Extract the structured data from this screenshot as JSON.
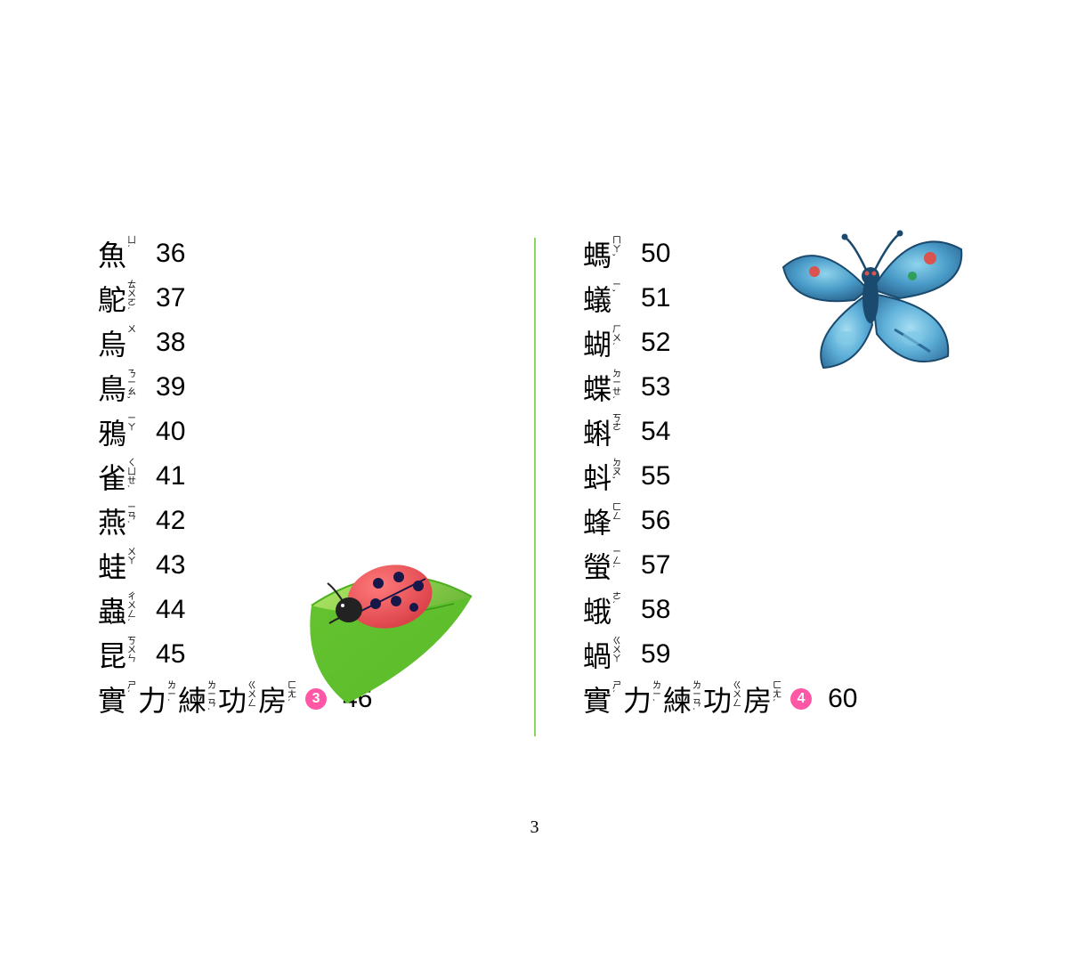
{
  "page_number": "3",
  "divider_color": "#86d75a",
  "bullet_color": "#ff57a6",
  "left_column": {
    "entries": [
      {
        "hanzi": "魚",
        "zhuyin": "ㄩˊ",
        "page": "36"
      },
      {
        "hanzi": "鴕",
        "zhuyin": "ㄊㄨㄛˊ",
        "page": "37"
      },
      {
        "hanzi": "烏",
        "zhuyin": "ㄨ",
        "page": "38"
      },
      {
        "hanzi": "鳥",
        "zhuyin": "ㄋㄧㄠˇ",
        "page": "39"
      },
      {
        "hanzi": "鴉",
        "zhuyin": "ㄧㄚ",
        "page": "40"
      },
      {
        "hanzi": "雀",
        "zhuyin": "ㄑㄩㄝˋ",
        "page": "41"
      },
      {
        "hanzi": "燕",
        "zhuyin": "ㄧㄢˋ",
        "page": "42"
      },
      {
        "hanzi": "蛙",
        "zhuyin": "ㄨㄚ",
        "page": "43"
      },
      {
        "hanzi": "蟲",
        "zhuyin": "ㄔㄨㄥˊ",
        "page": "44"
      },
      {
        "hanzi": "昆",
        "zhuyin": "ㄎㄨㄣ",
        "page": "45"
      }
    ],
    "practice": {
      "chars": [
        {
          "hanzi": "實",
          "zhuyin": "ㄕˊ"
        },
        {
          "hanzi": "力",
          "zhuyin": "ㄌㄧˋ"
        },
        {
          "hanzi": "練",
          "zhuyin": "ㄌㄧㄢˋ"
        },
        {
          "hanzi": "功",
          "zhuyin": "ㄍㄨㄥ"
        },
        {
          "hanzi": "房",
          "zhuyin": "ㄈㄤˊ"
        }
      ],
      "bullet": "3",
      "page": "46"
    }
  },
  "right_column": {
    "entries": [
      {
        "hanzi": "螞",
        "zhuyin": "ㄇㄚˇ",
        "page": "50"
      },
      {
        "hanzi": "蟻",
        "zhuyin": "ㄧˇ",
        "page": "51"
      },
      {
        "hanzi": "蝴",
        "zhuyin": "ㄏㄨˊ",
        "page": "52"
      },
      {
        "hanzi": "蝶",
        "zhuyin": "ㄉㄧㄝˊ",
        "page": "53"
      },
      {
        "hanzi": "蝌",
        "zhuyin": "ㄎㄜ",
        "page": "54"
      },
      {
        "hanzi": "蚪",
        "zhuyin": "ㄉㄡˇ",
        "page": "55"
      },
      {
        "hanzi": "蜂",
        "zhuyin": "ㄈㄥ",
        "page": "56"
      },
      {
        "hanzi": "螢",
        "zhuyin": "ㄧㄥˊ",
        "page": "57"
      },
      {
        "hanzi": "蛾",
        "zhuyin": "ㄜˊ",
        "page": "58"
      },
      {
        "hanzi": "蝸",
        "zhuyin": "ㄍㄨㄚ",
        "page": "59"
      }
    ],
    "practice": {
      "chars": [
        {
          "hanzi": "實",
          "zhuyin": "ㄕˊ"
        },
        {
          "hanzi": "力",
          "zhuyin": "ㄌㄧˋ"
        },
        {
          "hanzi": "練",
          "zhuyin": "ㄌㄧㄢˋ"
        },
        {
          "hanzi": "功",
          "zhuyin": "ㄍㄨㄥ"
        },
        {
          "hanzi": "房",
          "zhuyin": "ㄈㄤˊ"
        }
      ],
      "bullet": "4",
      "page": "60"
    }
  },
  "illustrations": {
    "ladybug": {
      "leaf_color_top": "#8fd94a",
      "leaf_color_bottom": "#4caf1f",
      "body_color": "#e94a4f",
      "head_color": "#2a2a2a",
      "spot_color": "#17174a"
    },
    "butterfly": {
      "wing_outer": "#3b8fc4",
      "wing_inner": "#6fc5e8",
      "wing_accent": "#2d5d8a",
      "wing_spot_red": "#d9534f",
      "wing_spot_green": "#2e9e5b",
      "body_color": "#1a4a6e"
    }
  }
}
